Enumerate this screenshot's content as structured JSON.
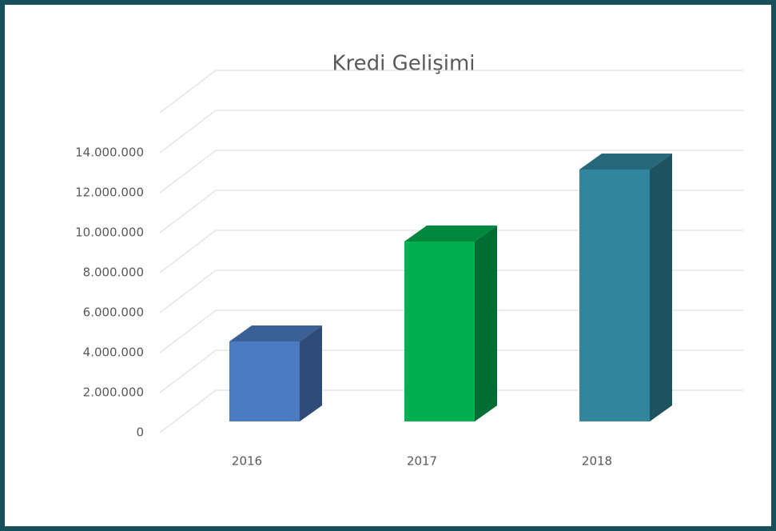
{
  "chart_data": {
    "type": "bar3d",
    "title": "Kredi Gelişimi",
    "categories": [
      "2016",
      "2017",
      "2018"
    ],
    "values": [
      4000000,
      9000000,
      12600000
    ],
    "colors": [
      "#4a7bc0",
      "#00b050",
      "#31859c"
    ],
    "ylim": [
      0,
      16000000
    ],
    "yticks": [
      0,
      {
        "value": 2000000,
        "label": "2.000.000"
      },
      {
        "value": 4000000,
        "label": "4.000.000"
      },
      {
        "value": 6000000,
        "label": "6.000.000"
      },
      {
        "value": 8000000,
        "label": "8.000.000"
      },
      {
        "value": 10000000,
        "label": "10.000.000"
      },
      {
        "value": 12000000,
        "label": "12.000.000"
      },
      {
        "value": 14000000,
        "label": "14.000.000"
      }
    ],
    "grid": true
  }
}
